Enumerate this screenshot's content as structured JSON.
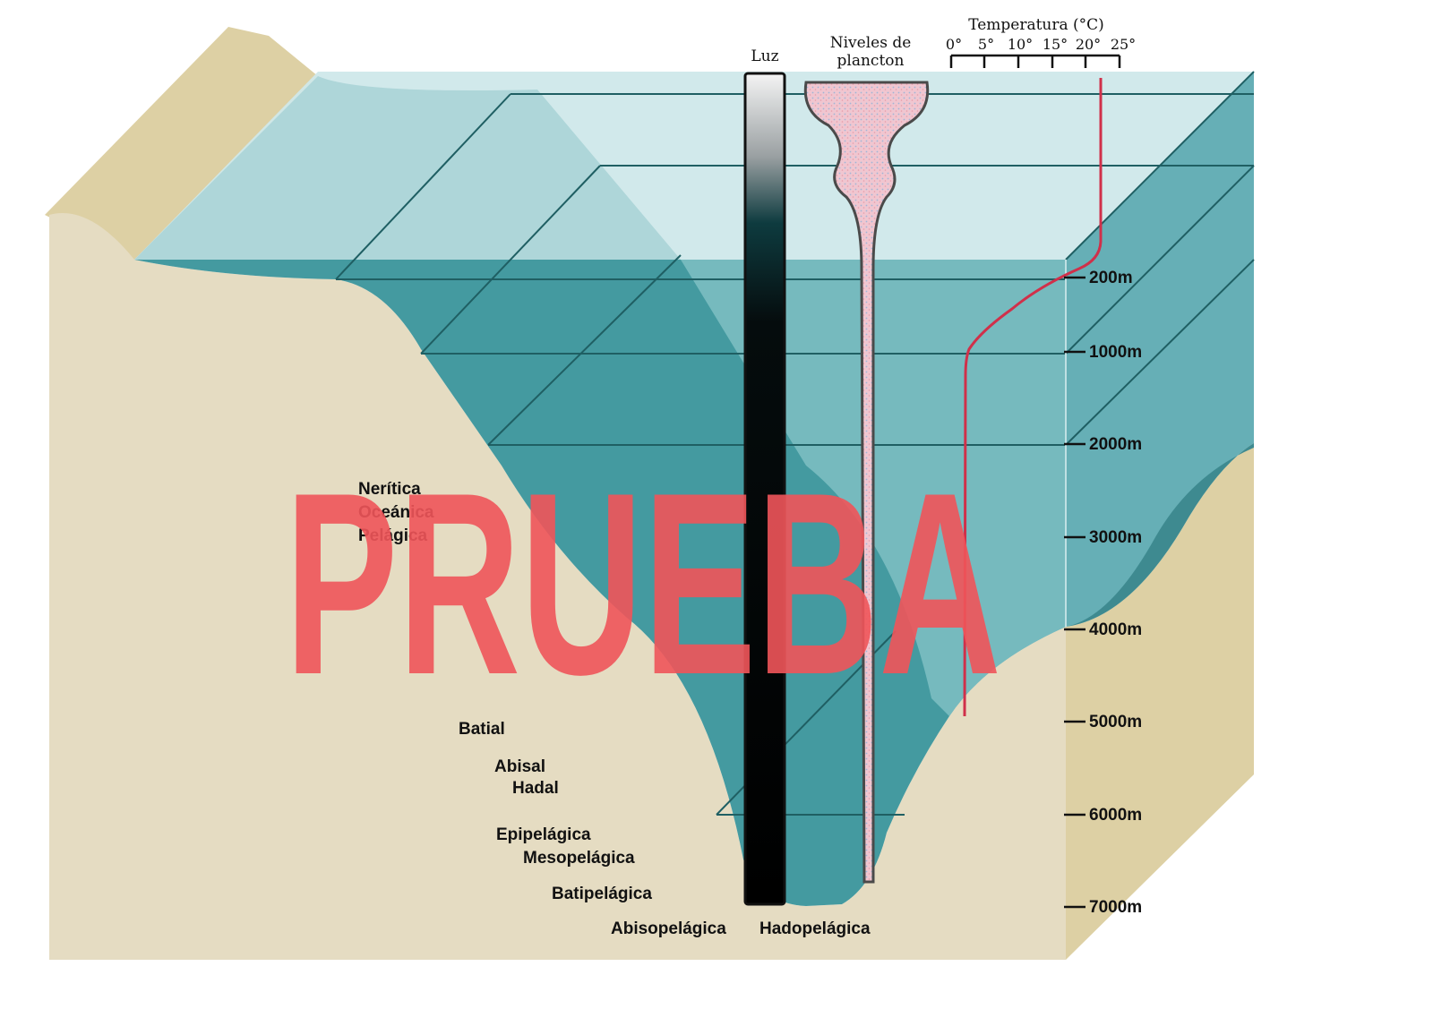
{
  "diagram": {
    "light_label": "Luz",
    "plankton_label": "Niveles de plancton",
    "temperature": {
      "title": "Temperatura (°C)",
      "ticks": [
        "0°",
        "5°",
        "10°",
        "15°",
        "20°",
        "25°"
      ]
    },
    "depth_scale": [
      "200m",
      "1000m",
      "2000m",
      "3000m",
      "4000m",
      "5000m",
      "6000m",
      "7000m"
    ],
    "zones": {
      "litoral_partial": [
        "Nerítica",
        "Oceánica",
        "Pelágica"
      ],
      "benthic": [
        "Batial",
        "Abisal",
        "Hadal"
      ],
      "pelagic": [
        "Epipelágica",
        "Mesopelágica",
        "Batipelágica",
        "Abisopelágica",
        "Hadopelágica"
      ]
    },
    "watermark": "PRUEBA"
  },
  "colors": {
    "sand": "#e5dcc2",
    "sand_dark": "#ddd0a4",
    "water_surface": "#cfe8ea",
    "water_light": "#a9d5d9",
    "water_deep": "#449aa0",
    "water_side": "#66afb6",
    "temperature_line": "#d0304a",
    "plankton": "#f0c6d0",
    "watermark": "#f0555a"
  }
}
